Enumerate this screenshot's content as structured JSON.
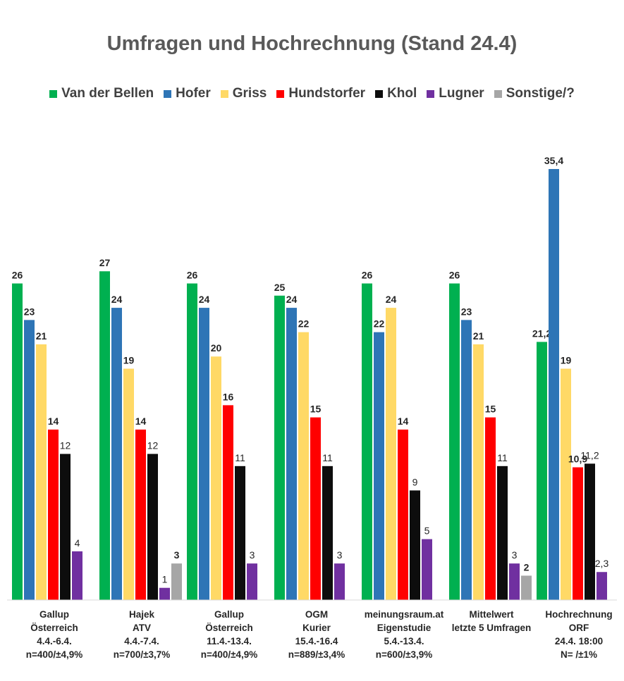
{
  "chart_data": {
    "type": "bar",
    "title": "Umfragen und Hochrechnung (Stand 24.4)",
    "xlabel": "",
    "ylabel": "",
    "ylim": [
      0,
      37
    ],
    "grid": false,
    "legend_position": "top",
    "categories": [
      [
        "Gallup",
        "Österreich",
        "4.4.-6.4.",
        "n=400/±4,9%"
      ],
      [
        "Hajek",
        "ATV",
        "4.4.-7.4.",
        "n=700/±3,7%"
      ],
      [
        "Gallup",
        "Österreich",
        "11.4.-13.4.",
        "n=400/±4,9%"
      ],
      [
        "OGM",
        "Kurier",
        "15.4.-16.4",
        "n=889/±3,4%"
      ],
      [
        "meinungsraum.at",
        "Eigenstudie",
        "5.4.-13.4.",
        "n=600/±3,9%"
      ],
      [
        "Mittelwert",
        "letzte 5 Umfragen"
      ],
      [
        "Hochrechnung",
        "ORF",
        "24.4. 18:00",
        "N=    /±1%"
      ]
    ],
    "series": [
      {
        "name": "Van der Bellen",
        "color": "#00B050",
        "bold": true,
        "values": [
          26,
          27,
          26,
          25,
          26,
          26,
          21.2
        ],
        "labels": [
          "26",
          "27",
          "26",
          "25",
          "26",
          "26",
          "21,2"
        ]
      },
      {
        "name": "Hofer",
        "color": "#2E75B6",
        "bold": true,
        "values": [
          23,
          24,
          24,
          24,
          22,
          23,
          35.4
        ],
        "labels": [
          "23",
          "24",
          "24",
          "24",
          "22",
          "23",
          "35,4"
        ]
      },
      {
        "name": "Griss",
        "color": "#FFD966",
        "bold": true,
        "values": [
          21,
          19,
          20,
          22,
          24,
          21,
          19
        ],
        "labels": [
          "21",
          "19",
          "20",
          "22",
          "24",
          "21",
          "19"
        ]
      },
      {
        "name": "Hundstorfer",
        "color": "#FF0000",
        "bold": true,
        "values": [
          14,
          14,
          16,
          15,
          14,
          15,
          10.9
        ],
        "labels": [
          "14",
          "14",
          "16",
          "15",
          "14",
          "15",
          "10,9"
        ]
      },
      {
        "name": "Khol",
        "color": "#0D0D0D",
        "bold": false,
        "values": [
          12,
          12,
          11,
          11,
          9,
          11,
          11.2
        ],
        "labels": [
          "12",
          "12",
          "11",
          "11",
          "9",
          "11",
          "11,2"
        ]
      },
      {
        "name": "Lugner",
        "color": "#7030A0",
        "bold": false,
        "values": [
          4,
          1,
          3,
          3,
          5,
          3,
          2.3
        ],
        "labels": [
          "4",
          "1",
          "3",
          "3",
          "5",
          "3",
          "2,3"
        ]
      },
      {
        "name": "Sonstige/?",
        "color": "#A6A6A6",
        "bold": true,
        "values": [
          null,
          3,
          null,
          null,
          null,
          2,
          null
        ],
        "labels": [
          null,
          "3",
          null,
          null,
          null,
          "2",
          null
        ]
      }
    ]
  }
}
